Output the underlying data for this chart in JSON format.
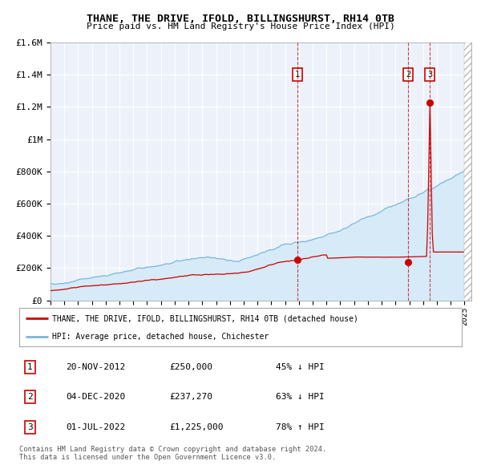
{
  "title": "THANE, THE DRIVE, IFOLD, BILLINGSHURST, RH14 0TB",
  "subtitle": "Price paid vs. HM Land Registry's House Price Index (HPI)",
  "hpi_line_color": "#7ab8d9",
  "hpi_fill_color": "#d6eaf8",
  "price_line_color": "#cc0000",
  "plot_bg_color": "#edf2fa",
  "grid_color": "#ffffff",
  "ylim": [
    0,
    1600000
  ],
  "xlim_start": 1995.0,
  "xlim_end": 2025.5,
  "sale_dates": [
    2012.89,
    2020.92,
    2022.5
  ],
  "sale_prices": [
    250000,
    237270,
    1225000
  ],
  "sale_labels": [
    "1",
    "2",
    "3"
  ],
  "legend_line1": "THANE, THE DRIVE, IFOLD, BILLINGSHURST, RH14 0TB (detached house)",
  "legend_line2": "HPI: Average price, detached house, Chichester",
  "table_data": [
    [
      "1",
      "20-NOV-2012",
      "£250,000",
      "45% ↓ HPI"
    ],
    [
      "2",
      "04-DEC-2020",
      "£237,270",
      "63% ↓ HPI"
    ],
    [
      "3",
      "01-JUL-2022",
      "£1,225,000",
      "78% ↑ HPI"
    ]
  ],
  "footnote": "Contains HM Land Registry data © Crown copyright and database right 2024.\nThis data is licensed under the Open Government Licence v3.0.",
  "yticks": [
    0,
    200000,
    400000,
    600000,
    800000,
    1000000,
    1200000,
    1400000,
    1600000
  ],
  "ytick_labels": [
    "£0",
    "£200K",
    "£400K",
    "£600K",
    "£800K",
    "£1M",
    "£1.2M",
    "£1.4M",
    "£1.6M"
  ]
}
